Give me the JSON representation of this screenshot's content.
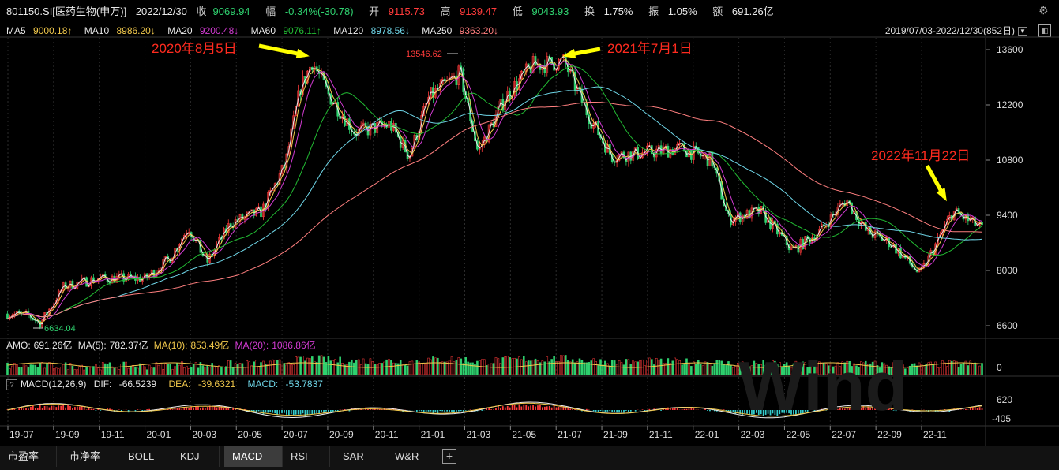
{
  "header": {
    "code": "801150.SI[医药生物(申万)]",
    "date": "2022/12/30",
    "close_label": "收",
    "close": "9069.94",
    "change_label": "幅",
    "change": "-0.34%(-30.78)",
    "open_label": "开",
    "open": "9115.73",
    "high_label": "高",
    "high": "9139.47",
    "low_label": "低",
    "low": "9043.93",
    "turnover_label": "换",
    "turnover": "1.75%",
    "amplitude_label": "振",
    "amplitude": "1.05%",
    "amount_label": "额",
    "amount": "691.26亿"
  },
  "ma_row": {
    "ma5_label": "MA5",
    "ma5": "9000.18↑",
    "ma10_label": "MA10",
    "ma10": "8986.20↓",
    "ma20_label": "MA20",
    "ma20": "9200.48↓",
    "ma60_label": "MA60",
    "ma60": "9076.11↑",
    "ma120_label": "MA120",
    "ma120": "8978.56↓",
    "ma250_label": "MA250",
    "ma250": "9363.20↓"
  },
  "range_label": "2019/07/03-2022/12/30(852日)",
  "colors": {
    "bg": "#000000",
    "up": "#ff3b3b",
    "down": "#2fd16f",
    "ma5": "#e8e8e8",
    "ma10": "#f2c94c",
    "ma20": "#d23bd2",
    "ma60": "#22bb33",
    "ma120": "#6fd6e8",
    "ma250": "#ff7f7f",
    "arrow": "#ffff00",
    "annotation": "#ff2b1f"
  },
  "annotations": {
    "a1": "2020年8月5日",
    "a2": "2021年7月1日",
    "a3": "2022年11月22日",
    "peak_label": "13546.62",
    "low_label": "6634.04"
  },
  "amo_row": {
    "amo_label": "AMO:",
    "amo": "691.26亿",
    "ma5_label": "MA(5):",
    "ma5": "782.37亿",
    "ma10_label": "MA(10):",
    "ma10": "853.49亿",
    "ma20_label": "MA(20):",
    "ma20": "1086.86亿",
    "axis_zero": "0"
  },
  "macd_row": {
    "help": "?",
    "label": "MACD(12,26,9)",
    "dif_label": "DIF:",
    "dif": "-66.5239",
    "dea_label": "DEA:",
    "dea": "-39.6321",
    "macd_label": "MACD:",
    "macd": "-53.7837",
    "axis_top": "620",
    "axis_bottom": "-405"
  },
  "x_ticks": [
    "19-07",
    "19-09",
    "19-11",
    "20-01",
    "20-03",
    "20-05",
    "20-07",
    "20-09",
    "20-11",
    "21-01",
    "21-03",
    "21-05",
    "21-07",
    "21-09",
    "21-11",
    "22-01",
    "22-03",
    "22-05",
    "22-07",
    "22-09",
    "22-11"
  ],
  "tabs": [
    "市盈率",
    "市净率",
    "BOLL",
    "KDJ",
    "MACD",
    "RSI",
    "SAR",
    "W&R"
  ],
  "active_tab": "MACD",
  "watermark": "Wind",
  "chart_data": {
    "type": "candlestick",
    "x_range": [
      "2019/07/03",
      "2022/12/30"
    ],
    "y_ticks": [
      6600,
      8000,
      9400,
      10800,
      12200,
      13600
    ],
    "ylim": [
      6300,
      13900
    ],
    "close_approx": [
      {
        "x": "2019-07-03",
        "y": 6900
      },
      {
        "x": "2019-08-01",
        "y": 6850
      },
      {
        "x": "2019-08-15",
        "y": 6660
      },
      {
        "x": "2019-09-15",
        "y": 7600
      },
      {
        "x": "2019-10-31",
        "y": 7800
      },
      {
        "x": "2019-12-31",
        "y": 7800
      },
      {
        "x": "2020-01-31",
        "y": 8300
      },
      {
        "x": "2020-02-25",
        "y": 9100
      },
      {
        "x": "2020-03-20",
        "y": 8200
      },
      {
        "x": "2020-04-20",
        "y": 9200
      },
      {
        "x": "2020-05-31",
        "y": 9500
      },
      {
        "x": "2020-07-01",
        "y": 10700
      },
      {
        "x": "2020-07-20",
        "y": 12600
      },
      {
        "x": "2020-08-05",
        "y": 13300
      },
      {
        "x": "2020-08-25",
        "y": 12500
      },
      {
        "x": "2020-09-30",
        "y": 11500
      },
      {
        "x": "2020-11-15",
        "y": 11700
      },
      {
        "x": "2020-12-10",
        "y": 10900
      },
      {
        "x": "2021-01-05",
        "y": 12400
      },
      {
        "x": "2021-02-15",
        "y": 13000
      },
      {
        "x": "2021-03-10",
        "y": 11000
      },
      {
        "x": "2021-04-15",
        "y": 12400
      },
      {
        "x": "2021-05-20",
        "y": 13200
      },
      {
        "x": "2021-07-01",
        "y": 13300
      },
      {
        "x": "2021-07-31",
        "y": 12000
      },
      {
        "x": "2021-09-01",
        "y": 10900
      },
      {
        "x": "2021-10-20",
        "y": 11000
      },
      {
        "x": "2021-12-01",
        "y": 11100
      },
      {
        "x": "2022-01-10",
        "y": 10800
      },
      {
        "x": "2022-02-01",
        "y": 9300
      },
      {
        "x": "2022-03-15",
        "y": 9500
      },
      {
        "x": "2022-04-26",
        "y": 8500
      },
      {
        "x": "2022-06-01",
        "y": 9000
      },
      {
        "x": "2022-07-05",
        "y": 9800
      },
      {
        "x": "2022-07-31",
        "y": 9000
      },
      {
        "x": "2022-09-01",
        "y": 8700
      },
      {
        "x": "2022-10-10",
        "y": 7900
      },
      {
        "x": "2022-11-22",
        "y": 9500
      },
      {
        "x": "2022-12-30",
        "y": 9070
      }
    ],
    "annotated_points": [
      {
        "label": "2020年8月5日",
        "x": "2020-08-05"
      },
      {
        "label": "2021年7月1日",
        "x": "2021-07-01"
      },
      {
        "label": "2022年11月22日",
        "x": "2022-11-22"
      },
      {
        "label": "13546.62",
        "y": 13546.62
      },
      {
        "label": "6634.04",
        "y": 6634.04
      }
    ]
  }
}
